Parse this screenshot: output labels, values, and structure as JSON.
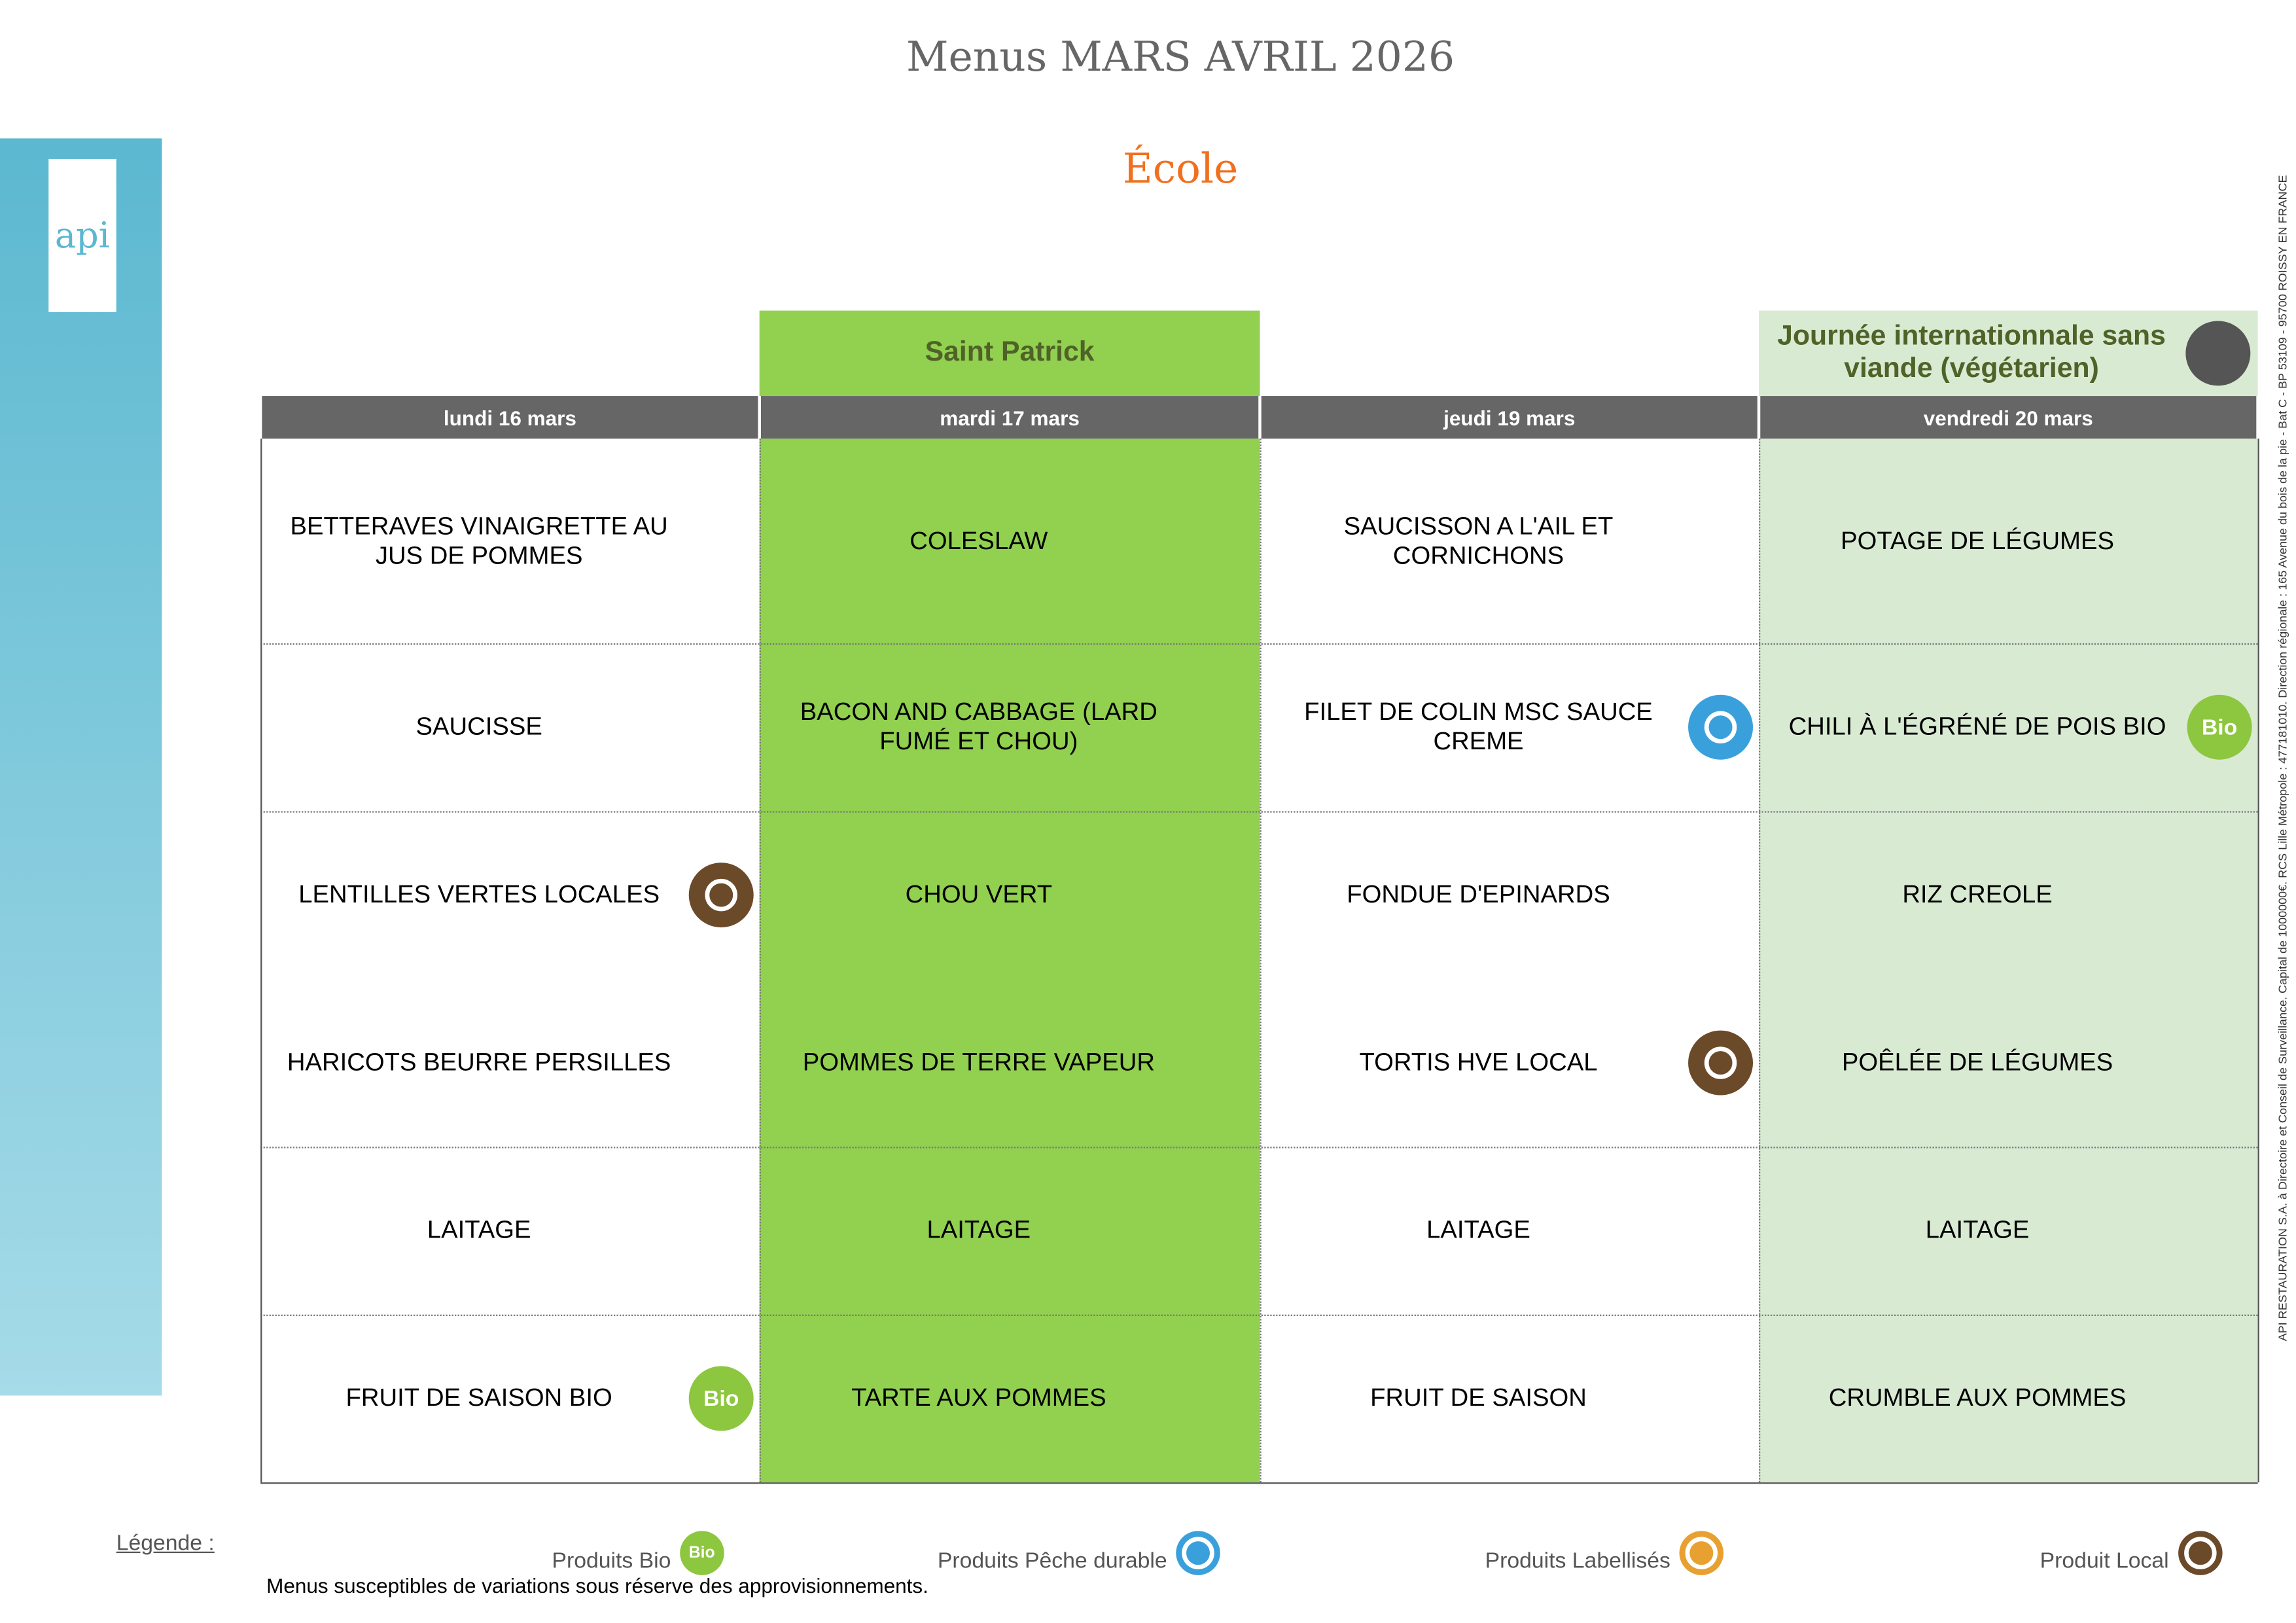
{
  "header": {
    "title": "Menus MARS AVRIL 2026",
    "subtitle": "École"
  },
  "logo": "api",
  "badge_text": "Bio",
  "columns": [
    {
      "theme": null,
      "day": "lundi 16 mars",
      "color": "#ffffff",
      "items": [
        {
          "text": "BETTERAVES VINAIGRETTE AU JUS DE POMMES",
          "icon": null
        },
        {
          "text": "SAUCISSE",
          "icon": null
        },
        {
          "text": "LENTILLES VERTES LOCALES",
          "icon": "local"
        },
        {
          "text": "HARICOTS BEURRE PERSILLES",
          "icon": null
        },
        {
          "text": "LAITAGE",
          "icon": null
        },
        {
          "text": "FRUIT DE SAISON BIO",
          "icon": "bio"
        }
      ]
    },
    {
      "theme": "Saint Patrick",
      "day": "mardi 17 mars",
      "color": "#92d050",
      "items": [
        {
          "text": "COLESLAW",
          "icon": null
        },
        {
          "text": "BACON AND CABBAGE (LARD FUMÉ ET CHOU)",
          "icon": null
        },
        {
          "text": "CHOU VERT",
          "icon": null
        },
        {
          "text": "POMMES DE TERRE VAPEUR",
          "icon": null
        },
        {
          "text": "LAITAGE",
          "icon": null
        },
        {
          "text": "TARTE AUX POMMES",
          "icon": null
        }
      ]
    },
    {
      "theme": null,
      "day": "jeudi 19 mars",
      "color": "#ffffff",
      "items": [
        {
          "text": "SAUCISSON A L'AIL ET CORNICHONS",
          "icon": null
        },
        {
          "text": "FILET DE COLIN MSC SAUCE CREME",
          "icon": "peche"
        },
        {
          "text": "FONDUE D'EPINARDS",
          "icon": null
        },
        {
          "text": "TORTIS HVE LOCAL",
          "icon": "local"
        },
        {
          "text": "LAITAGE",
          "icon": null
        },
        {
          "text": "FRUIT DE SAISON",
          "icon": null
        }
      ]
    },
    {
      "theme": "Journée internationnale sans viande (végétarien)",
      "day": "vendredi 20 mars",
      "color": "#d9ead3",
      "items": [
        {
          "text": "POTAGE DE LÉGUMES",
          "icon": null
        },
        {
          "text": "CHILI À L'ÉGRÉNÉ DE POIS BIO",
          "icon": "bio"
        },
        {
          "text": "RIZ CREOLE",
          "icon": null
        },
        {
          "text": "POÊLÉE DE LÉGUMES",
          "icon": null
        },
        {
          "text": "LAITAGE",
          "icon": null
        },
        {
          "text": "CRUMBLE AUX POMMES",
          "icon": null
        }
      ]
    }
  ],
  "legend": {
    "label": "Légende :",
    "items": [
      {
        "text": "Produits Bio",
        "icon": "bio"
      },
      {
        "text": "Produits Pêche durable",
        "icon": "peche"
      },
      {
        "text": "Produits Labellisés",
        "icon": "label"
      },
      {
        "text": "Produit Local",
        "icon": "local"
      }
    ]
  },
  "footnote": "Menus susceptibles de variations sous réserve des approvisionnements.",
  "side_text": "API RESTAURATION S.A. à Directoire et Conseil de Surveillance. Capital de 1000000€. RCS Lille Métropole : 477181010. Direction régionale : 165 Avenue du bois de la pie - Bat C - BP 53109 - 95700 ROISSY EN FRANCE"
}
